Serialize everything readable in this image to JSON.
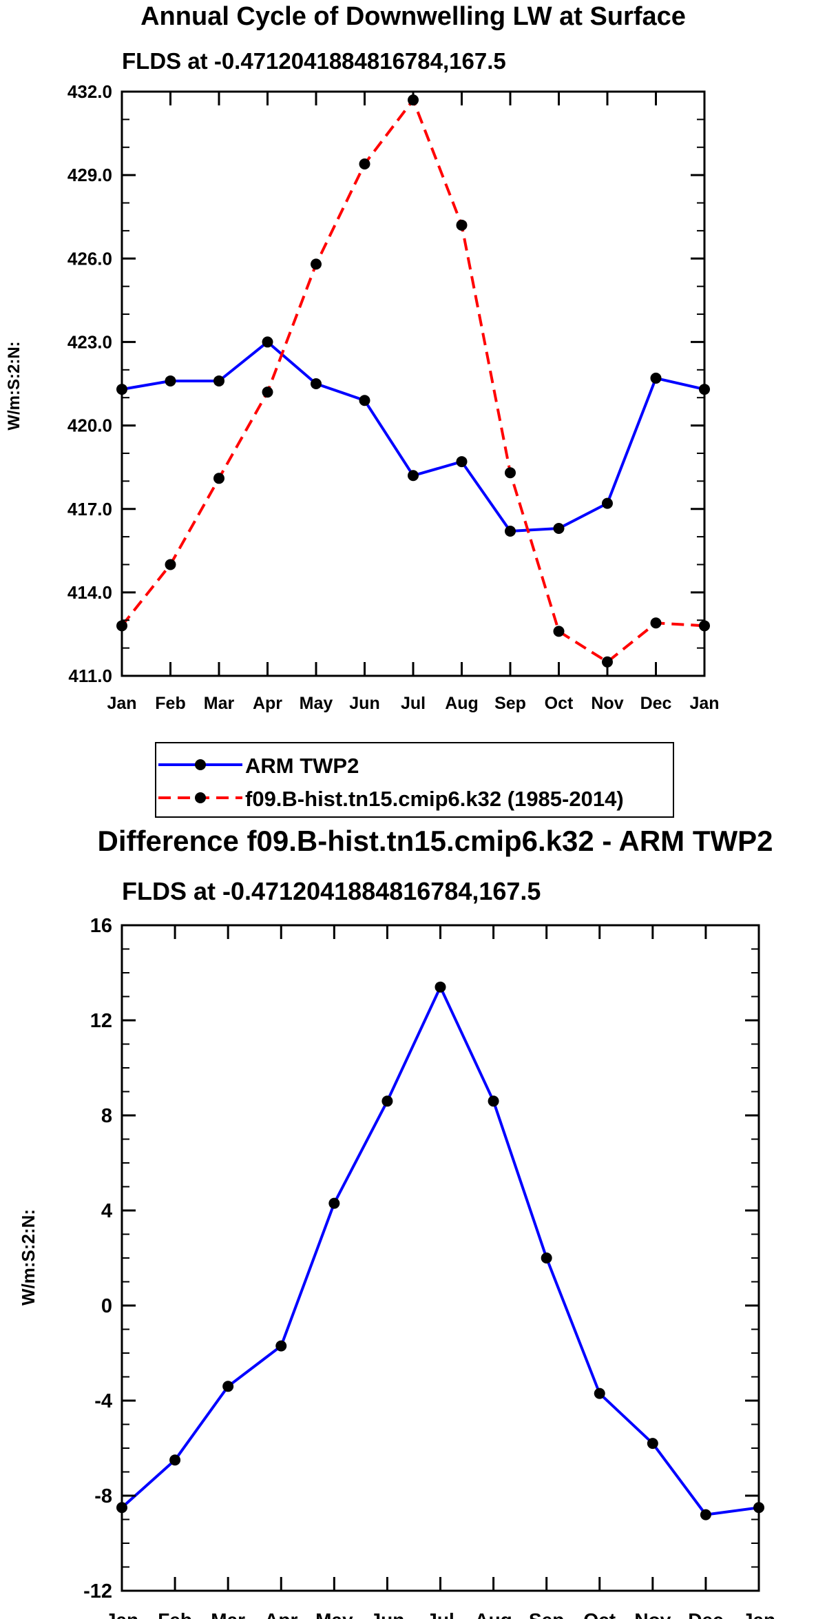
{
  "chart_data": [
    {
      "type": "line",
      "title": "Annual Cycle of Downwelling LW at Surface",
      "subtitle": "FLDS at -0.4712041884816784,167.5",
      "ylabel": "W/m:S:2:N:",
      "xlabel": "",
      "categories": [
        "Jan",
        "Feb",
        "Mar",
        "Apr",
        "May",
        "Jun",
        "Jul",
        "Aug",
        "Sep",
        "Oct",
        "Nov",
        "Dec",
        "Jan"
      ],
      "ylim": [
        411.0,
        432.0
      ],
      "yticks": [
        411.0,
        414.0,
        417.0,
        420.0,
        423.0,
        426.0,
        429.0,
        432.0
      ],
      "ytick_labels": [
        "411.0",
        "414.0",
        "417.0",
        "420.0",
        "423.0",
        "426.0",
        "429.0",
        "432.0"
      ],
      "series": [
        {
          "name": "ARM TWP2",
          "color": "#0000ff",
          "dash": "solid",
          "values": [
            421.3,
            421.6,
            421.6,
            423.0,
            421.5,
            420.9,
            418.2,
            418.7,
            416.2,
            416.3,
            417.2,
            421.7,
            421.3
          ]
        },
        {
          "name": "f09.B-hist.tn15.cmip6.k32 (1985-2014)",
          "color": "#ff0000",
          "dash": "dashed",
          "values": [
            412.8,
            415.0,
            418.1,
            421.2,
            425.8,
            429.4,
            431.7,
            427.2,
            418.3,
            412.6,
            411.5,
            412.9,
            412.8
          ]
        }
      ],
      "legend": {
        "placement": "below",
        "entries": [
          "ARM TWP2",
          "f09.B-hist.tn15.cmip6.k32 (1985-2014)"
        ]
      }
    },
    {
      "type": "line",
      "title": "Difference f09.B-hist.tn15.cmip6.k32 - ARM TWP2",
      "subtitle": "FLDS at -0.4712041884816784,167.5",
      "ylabel": "W/m:S:2:N:",
      "xlabel": "",
      "categories": [
        "Jan",
        "Feb",
        "Mar",
        "Apr",
        "May",
        "Jun",
        "Jul",
        "Aug",
        "Sep",
        "Oct",
        "Nov",
        "Dec",
        "Jan"
      ],
      "ylim": [
        -12,
        16
      ],
      "yticks": [
        -12,
        -8,
        -4,
        0,
        4,
        8,
        12,
        16
      ],
      "ytick_labels": [
        "-12",
        "-8",
        "-4",
        "0",
        "4",
        "8",
        "12",
        "16"
      ],
      "series": [
        {
          "name": "Difference",
          "color": "#0000ff",
          "dash": "solid",
          "values": [
            -8.5,
            -6.5,
            -3.4,
            -1.7,
            4.3,
            8.6,
            13.4,
            8.6,
            2.0,
            -3.7,
            -5.8,
            -8.8,
            -8.5
          ]
        }
      ]
    }
  ]
}
